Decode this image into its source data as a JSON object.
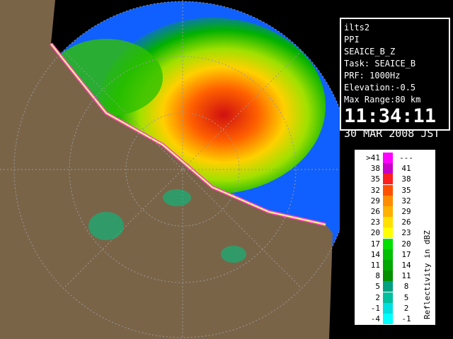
{
  "info": {
    "lines": [
      "ilts2",
      "PPI",
      "SEAICE_B_Z",
      "Task: SEAICE_B",
      "PRF: 1000Hz",
      "Elevation:-0.5",
      "Max Range:80 km"
    ],
    "time": "11:34:11",
    "date": "30 MAR 2008 JST"
  },
  "legend": {
    "title": "Reflectivity in dBZ",
    "rows": [
      {
        "low": ">41",
        "high": "---",
        "color": "#ff00ff"
      },
      {
        "low": "38",
        "high": "41",
        "color": "#c800c8"
      },
      {
        "low": "35",
        "high": "38",
        "color": "#ff2020"
      },
      {
        "low": "32",
        "high": "35",
        "color": "#ff5000"
      },
      {
        "low": "29",
        "high": "32",
        "color": "#ff8c00"
      },
      {
        "low": "26",
        "high": "29",
        "color": "#ffb000"
      },
      {
        "low": "23",
        "high": "26",
        "color": "#ffe000"
      },
      {
        "low": "20",
        "high": "23",
        "color": "#ffff00"
      },
      {
        "low": "17",
        "high": "20",
        "color": "#00e000"
      },
      {
        "low": "14",
        "high": "17",
        "color": "#00c000"
      },
      {
        "low": "11",
        "high": "14",
        "color": "#00a800"
      },
      {
        "low": "8",
        "high": "11",
        "color": "#009000"
      },
      {
        "low": "5",
        "high": "8",
        "color": "#00a080"
      },
      {
        "low": "2",
        "high": "5",
        "color": "#00c0a0"
      },
      {
        "low": "-1",
        "high": "2",
        "color": "#00e0e0"
      },
      {
        "low": "-4",
        "high": "-1",
        "color": "#00ffff"
      }
    ]
  }
}
